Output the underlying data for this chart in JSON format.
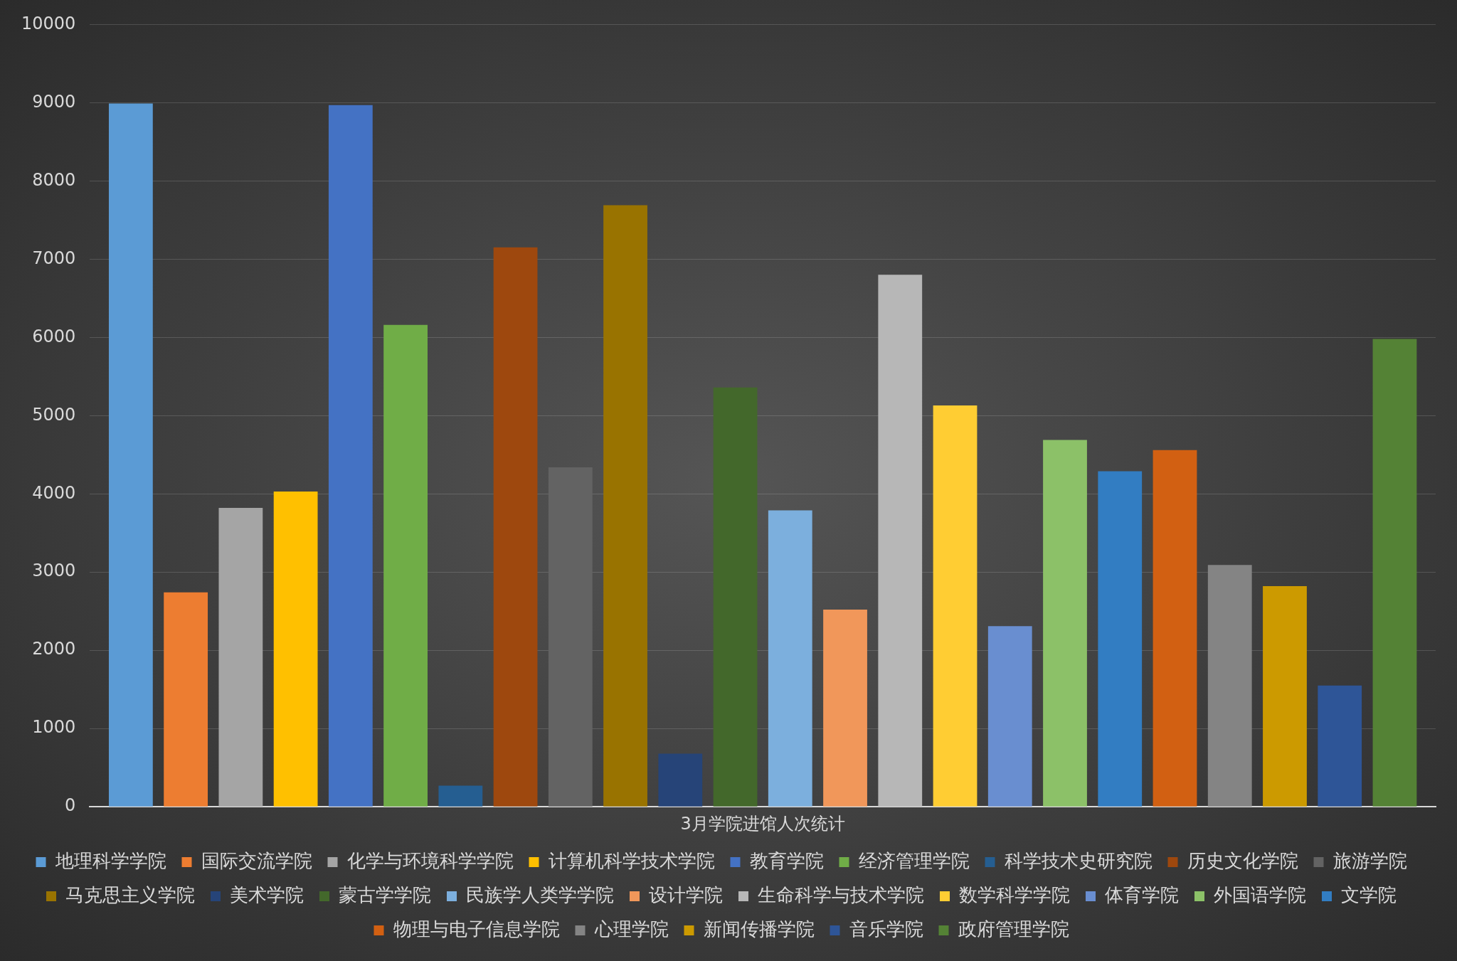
{
  "chart_data": {
    "type": "bar",
    "categories": [
      "3月学院进馆人次统计"
    ],
    "ylim": [
      0,
      10000
    ],
    "yticks": [
      0,
      1000,
      2000,
      3000,
      4000,
      5000,
      6000,
      7000,
      8000,
      9000,
      10000
    ],
    "grid": "y",
    "legend": "bottom",
    "series": [
      {
        "name": "地理科学学院",
        "color": "#5b9bd5",
        "values": [
          8990
        ]
      },
      {
        "name": "国际交流学院",
        "color": "#ed7d31",
        "values": [
          2740
        ]
      },
      {
        "name": "化学与环境科学学院",
        "color": "#a5a5a5",
        "values": [
          3820
        ]
      },
      {
        "name": "计算机科学技术学院",
        "color": "#ffc000",
        "values": [
          4030
        ]
      },
      {
        "name": "教育学院",
        "color": "#4472c4",
        "values": [
          8970
        ]
      },
      {
        "name": "经济管理学院",
        "color": "#70ad47",
        "values": [
          6160
        ]
      },
      {
        "name": "科学技术史研究院",
        "color": "#255e91",
        "values": [
          270
        ]
      },
      {
        "name": "历史文化学院",
        "color": "#9e480e",
        "values": [
          7150
        ]
      },
      {
        "name": "旅游学院",
        "color": "#636363",
        "values": [
          4340
        ]
      },
      {
        "name": "马克思主义学院",
        "color": "#997300",
        "values": [
          7690
        ]
      },
      {
        "name": "美术学院",
        "color": "#264478",
        "values": [
          680
        ]
      },
      {
        "name": "蒙古学学院",
        "color": "#43682b",
        "values": [
          5360
        ]
      },
      {
        "name": "民族学人类学学院",
        "color": "#7cafdd",
        "values": [
          3790
        ]
      },
      {
        "name": "设计学院",
        "color": "#f1975a",
        "values": [
          2520
        ]
      },
      {
        "name": "生命科学与技术学院",
        "color": "#b7b7b7",
        "values": [
          6800
        ]
      },
      {
        "name": "数学科学学院",
        "color": "#ffcd33",
        "values": [
          5130
        ]
      },
      {
        "name": "体育学院",
        "color": "#698ed0",
        "values": [
          2310
        ]
      },
      {
        "name": "外国语学院",
        "color": "#8cc168",
        "values": [
          4690
        ]
      },
      {
        "name": "文学院",
        "color": "#327dc2",
        "values": [
          4290
        ]
      },
      {
        "name": "物理与电子信息学院",
        "color": "#d26012",
        "values": [
          4560
        ]
      },
      {
        "name": "心理学院",
        "color": "#848484",
        "values": [
          3090
        ]
      },
      {
        "name": "新闻传播学院",
        "color": "#cc9a00",
        "values": [
          2820
        ]
      },
      {
        "name": "音乐学院",
        "color": "#2e5597",
        "values": [
          1550
        ]
      },
      {
        "name": "政府管理学院",
        "color": "#548235",
        "values": [
          5980
        ]
      }
    ]
  }
}
